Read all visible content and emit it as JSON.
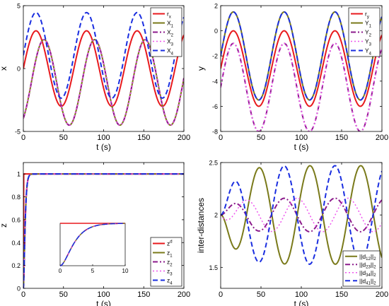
{
  "chart_data": [
    {
      "id": "x-states",
      "type": "line",
      "xlabel": "t (s)",
      "ylabel": "x",
      "xlim": [
        0,
        200
      ],
      "ylim": [
        -5,
        5
      ],
      "xticks": [
        0,
        50,
        100,
        150,
        200
      ],
      "yticks": [
        -5,
        0,
        5
      ],
      "legend_position": "top-right",
      "series": [
        {
          "name": "r_x",
          "legend": {
            "main": "r",
            "sub": "x"
          },
          "color": "#e8191d",
          "dash": "solid",
          "width": 2,
          "model": {
            "A": 3.0,
            "T": 63,
            "t0": 0,
            "c": 0
          }
        },
        {
          "name": "X_1",
          "legend": {
            "main": "X",
            "sub": "1"
          },
          "color": "#7a7a1a",
          "dash": "solid",
          "width": 2,
          "model": {
            "A": 3.4,
            "T": 63,
            "t0": 10,
            "c": -1.1
          }
        },
        {
          "name": "X_2",
          "legend": {
            "main": "X",
            "sub": "2"
          },
          "color": "#8b1a8b",
          "dash": "dashdot",
          "width": 2,
          "model": {
            "A": 3.4,
            "T": 63,
            "t0": 10,
            "c": -1.1
          }
        },
        {
          "name": "X_3",
          "legend": {
            "main": "X",
            "sub": "3"
          },
          "color": "#ee55ee",
          "dash": "dot",
          "width": 1.5,
          "model": {
            "A": 3.4,
            "T": 63,
            "t0": 10,
            "c": -1.1
          }
        },
        {
          "name": "X_4",
          "legend": {
            "main": "X",
            "sub": "4"
          },
          "color": "#1a2ee0",
          "dash": "dash",
          "width": 2,
          "model": {
            "A": 3.4,
            "T": 63,
            "t0": 0,
            "c": 1.05
          }
        }
      ]
    },
    {
      "id": "y-states",
      "type": "line",
      "xlabel": "t (s)",
      "ylabel": "y",
      "xlim": [
        0,
        200
      ],
      "ylim": [
        -8,
        2
      ],
      "xticks": [
        0,
        50,
        100,
        150,
        200
      ],
      "yticks": [
        -8,
        -6,
        -4,
        -2,
        0,
        2
      ],
      "legend_position": "top-right",
      "series": [
        {
          "name": "r_y",
          "legend": {
            "main": "r",
            "sub": "y"
          },
          "color": "#e8191d",
          "dash": "solid",
          "width": 2,
          "model": {
            "A": 3.0,
            "T": 63,
            "t0": 0,
            "c": -3.0
          }
        },
        {
          "name": "Y_1",
          "legend": {
            "main": "Y",
            "sub": "1"
          },
          "color": "#7a7a1a",
          "dash": "solid",
          "width": 2,
          "model": {
            "A": 3.5,
            "T": 63,
            "t0": 0,
            "c": -2.0
          }
        },
        {
          "name": "Y_2",
          "legend": {
            "main": "Y",
            "sub": "2"
          },
          "color": "#8b1a8b",
          "dash": "dashdot",
          "width": 2,
          "model": {
            "A": 3.5,
            "T": 63,
            "t0": 0,
            "c": -4.5
          }
        },
        {
          "name": "Y_3",
          "legend": {
            "main": "Y",
            "sub": "3"
          },
          "color": "#ee55ee",
          "dash": "dot",
          "width": 1.5,
          "model": {
            "A": 3.5,
            "T": 63,
            "t0": 0,
            "c": -4.5
          }
        },
        {
          "name": "Y_4",
          "legend": {
            "main": "Y",
            "sub": "4"
          },
          "color": "#1a2ee0",
          "dash": "dash",
          "width": 2,
          "model": {
            "A": 3.5,
            "T": 63,
            "t0": 0,
            "c": -2.0
          }
        }
      ]
    },
    {
      "id": "z-states",
      "type": "line",
      "xlabel": "t (s)",
      "ylabel": "z",
      "xlim": [
        0,
        200
      ],
      "ylim": [
        0,
        1.1
      ],
      "xticks": [
        0,
        50,
        100,
        150,
        200
      ],
      "yticks": [
        0,
        0.2,
        0.4,
        0.6,
        0.8,
        1
      ],
      "legend_position": "bottom-right",
      "inset": {
        "xlim": [
          0,
          10
        ],
        "ylim": [
          0,
          1
        ],
        "xticks": [
          0,
          5,
          10
        ]
      },
      "series": [
        {
          "name": "z^d",
          "legend": {
            "main": "z",
            "sup": "d"
          },
          "color": "#e8191d",
          "dash": "solid",
          "width": 2,
          "model": {
            "step": true,
            "tau": 0
          }
        },
        {
          "name": "z_1",
          "legend": {
            "main": "z",
            "sub": "1"
          },
          "color": "#7a7a1a",
          "dash": "solid",
          "width": 2,
          "model": {
            "step": false,
            "tau": 1.2
          }
        },
        {
          "name": "z_2",
          "legend": {
            "main": "z",
            "sub": "2"
          },
          "color": "#8b1a8b",
          "dash": "dashdot",
          "width": 2,
          "model": {
            "step": false,
            "tau": 1.2
          }
        },
        {
          "name": "z_3",
          "legend": {
            "main": "z",
            "sub": "3"
          },
          "color": "#ee55ee",
          "dash": "dot",
          "width": 1.5,
          "model": {
            "step": false,
            "tau": 1.2
          }
        },
        {
          "name": "z_4",
          "legend": {
            "main": "z",
            "sub": "4"
          },
          "color": "#1a2ee0",
          "dash": "dash",
          "width": 2,
          "model": {
            "step": false,
            "tau": 1.2
          }
        }
      ]
    },
    {
      "id": "inter-distances",
      "type": "line",
      "xlabel": "t (s)",
      "ylabel": "inter-distances",
      "xlim": [
        0,
        200
      ],
      "ylim": [
        1.3,
        2.5
      ],
      "xticks": [
        0,
        50,
        100,
        150,
        200
      ],
      "yticks": [
        1.5,
        2,
        2.5
      ],
      "legend_position": "bottom-right",
      "series": [
        {
          "name": "||d12||2",
          "legend": {
            "pre": "||d",
            "sub": "12",
            "post": "||",
            "sub2": "2"
          },
          "color": "#7a7a1a",
          "dash": "solid",
          "width": 2,
          "model": {
            "A": 0.47,
            "T": 63,
            "t0": 32,
            "c": 2.0,
            "ramp": 15
          }
        },
        {
          "name": "||d23||2",
          "legend": {
            "pre": "||d",
            "sub": "23",
            "post": "||",
            "sub2": "2"
          },
          "color": "#8b1a8b",
          "dash": "dashdot",
          "width": 2,
          "model": {
            "A": 0.16,
            "T": 63,
            "t0": 0,
            "c": 2.0,
            "ramp": 15
          }
        },
        {
          "name": "||d34||2",
          "legend": {
            "pre": "||d",
            "sub": "34",
            "post": "||",
            "sub2": "2"
          },
          "color": "#ee55ee",
          "dash": "dot",
          "width": 1.5,
          "model": {
            "A": 0.16,
            "T": 63,
            "t0": 16,
            "c": 2.0,
            "ramp": 15
          }
        },
        {
          "name": "||d41||2",
          "legend": {
            "pre": "||d",
            "sub": "41",
            "post": "||",
            "sub2": "2"
          },
          "color": "#1a2ee0",
          "dash": "dash",
          "width": 2,
          "model": {
            "A": 0.47,
            "T": 63,
            "t0": 0,
            "c": 2.0,
            "ramp": 15
          }
        }
      ]
    }
  ]
}
